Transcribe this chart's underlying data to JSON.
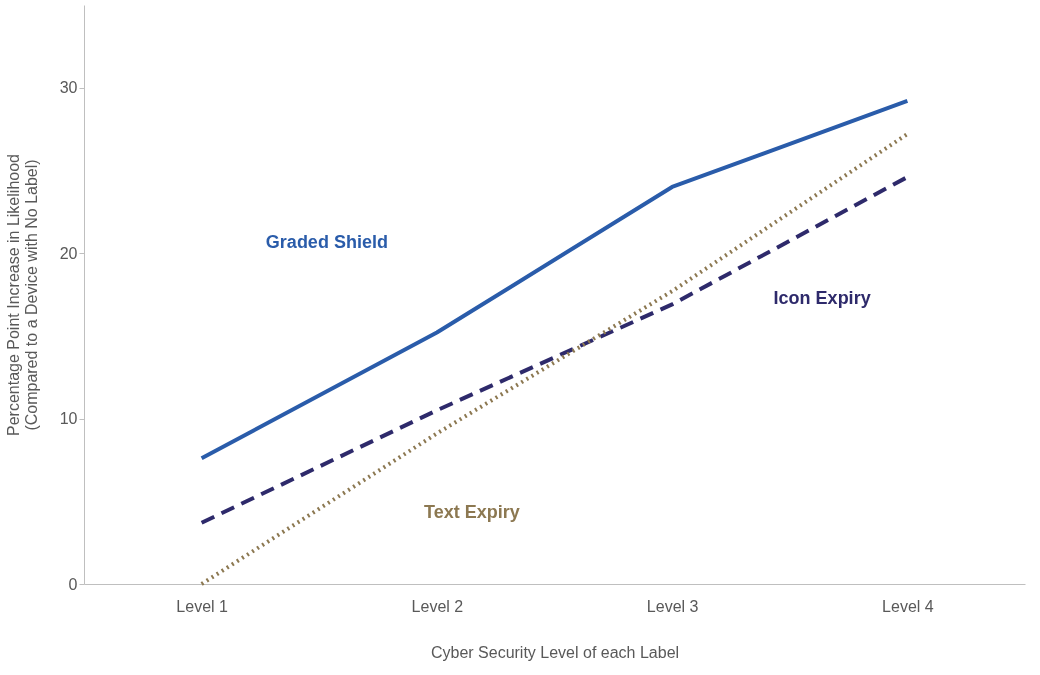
{
  "chart_data": {
    "type": "line",
    "xlabel": "Cyber Security Level of each Label",
    "ylabel": "Percentage Point Increase in Likelihood\n(Compared to a Device with No Label)",
    "categories": [
      "Level 1",
      "Level 2",
      "Level 3",
      "Level 4"
    ],
    "series": [
      {
        "name": "Graded Shield",
        "color": "#2a5caa",
        "line_style": "solid",
        "values": [
          7.6,
          15.2,
          24.0,
          29.2
        ]
      },
      {
        "name": "Icon Expiry",
        "color": "#2e2a6b",
        "line_style": "dashed",
        "values": [
          3.7,
          10.5,
          16.9,
          24.6
        ]
      },
      {
        "name": "Text Expiry",
        "color": "#8c7851",
        "line_style": "dotted",
        "values": [
          0,
          9.1,
          17.7,
          27.2
        ]
      }
    ],
    "ylim": [
      0,
      35
    ],
    "yticks": [
      0,
      10,
      20,
      30
    ],
    "marker": "none"
  }
}
